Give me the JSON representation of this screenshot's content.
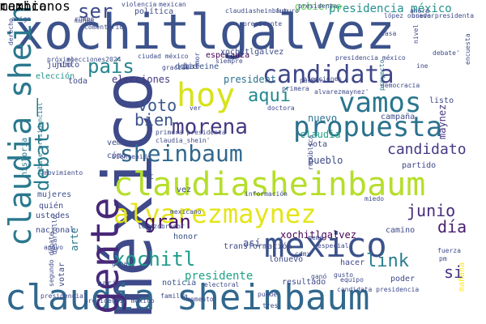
{
  "cloud": {
    "words": [
      {
        "text": "xochitlgalvez",
        "color": "#3b528b"
      },
      {
        "text": "méxico",
        "color": "#3e4a89"
      },
      {
        "text": "claudia sheinbaum",
        "color": "#31688e"
      },
      {
        "text": "claudiasheinbaum",
        "color": "#b5de2b"
      },
      {
        "text": "claudia_shein",
        "color": "#2a788e"
      },
      {
        "text": "mexico",
        "color": "#3b528b"
      },
      {
        "text": "propuesta",
        "color": "#2c728e"
      },
      {
        "text": "hoy",
        "color": "#d8e219"
      },
      {
        "text": "vamos",
        "color": "#2a768e"
      },
      {
        "text": "alvarezmaynez",
        "color": "#e5e419"
      },
      {
        "text": "candidata",
        "color": "#3f4788"
      },
      {
        "text": "gente",
        "color": "#482878"
      },
      {
        "text": "sheinbaum",
        "color": "#31688e"
      },
      {
        "text": "morena",
        "color": "#443983"
      },
      {
        "text": "país",
        "color": "#25858e"
      },
      {
        "text": "debate",
        "color": "#287d8e"
      },
      {
        "text": "xochitl",
        "color": "#1e9b8a"
      },
      {
        "text": "candidato",
        "color": "#443983"
      },
      {
        "text": "gran",
        "color": "#471365"
      },
      {
        "text": "aquí",
        "color": "#23898e"
      },
      {
        "text": "bien",
        "color": "#3b528b"
      },
      {
        "text": "voto",
        "color": "#39568c"
      },
      {
        "text": "junio",
        "color": "#472d7b"
      },
      {
        "text": "día",
        "color": "#481f70"
      },
      {
        "text": "link",
        "color": "#287d8e"
      },
      {
        "text": "si",
        "color": "#453781"
      },
      {
        "text": "ser",
        "color": "#3e4a89"
      },
      {
        "text": "arte",
        "color": "#2a788e"
      },
      {
        "text": "xochitlgalvez",
        "color": "#440154"
      },
      {
        "text": "presidente",
        "color": "#20a386"
      },
      {
        "text": "resultado",
        "color": "#3e4a89"
      },
      {
        "text": "noticia",
        "color": "#3b528b"
      },
      {
        "text": "presidencia méxico",
        "color": "#21918c"
      },
      {
        "text": "gobierno",
        "color": "#5ec962"
      },
      {
        "text": "elecciones",
        "color": "#453781"
      },
      {
        "text": "debateine",
        "color": "#3b528b"
      },
      {
        "text": "president",
        "color": "#2c728e"
      },
      {
        "text": "esperanza",
        "color": "#440154"
      },
      {
        "text": "partido",
        "color": "#3e4a89"
      },
      {
        "text": "mujeres",
        "color": "#3b528b"
      },
      {
        "text": "transformación",
        "color": "#3e4a89"
      },
      {
        "text": "pueblo",
        "color": "#3e4a89"
      },
      {
        "text": "hacia",
        "color": "#3e4a89"
      },
      {
        "text": "honor",
        "color": "#3b528b"
      },
      {
        "text": "así",
        "color": "#3e4a89"
      },
      {
        "text": "nuevo",
        "color": "#2c728e"
      },
      {
        "text": "poder",
        "color": "#3e4a89"
      },
      {
        "text": "campaña",
        "color": "#3e4a89"
      },
      {
        "text": "maynez",
        "color": "#453781"
      },
      {
        "text": "claudia",
        "color": "#20a386"
      },
      {
        "text": "vota",
        "color": "#3e4a89"
      },
      {
        "text": "presidencia méxico",
        "color": "#3e4a89"
      },
      {
        "text": "votar",
        "color": "#3e4a89"
      },
      {
        "text": "camino",
        "color": "#3e4a89"
      },
      {
        "text": "equipo",
        "color": "#3e4a89"
      },
      {
        "text": "hacer",
        "color": "#3e4a89"
      },
      {
        "text": "junto",
        "color": "#3e4a89"
      },
      {
        "text": "toda",
        "color": "#3e4a89"
      },
      {
        "text": "elección",
        "color": "#21918c"
      },
      {
        "text": "cómo",
        "color": "#3e4a89"
      },
      {
        "text": "vemos",
        "color": "#3e4a89"
      },
      {
        "text": "quién",
        "color": "#3e4a89"
      },
      {
        "text": "ustedes",
        "color": "#3e4a89"
      },
      {
        "text": "nacional",
        "color": "#3e4a89"
      },
      {
        "text": "debate presidencial",
        "color": "#2a788e"
      },
      {
        "text": "historia",
        "color": "#2a788e"
      },
      {
        "text": "xochitlgalvez",
        "color": "#3e4a89"
      },
      {
        "text": "claudia_shein'",
        "color": "#3e4a89"
      },
      {
        "text": "alvarezmaynez'",
        "color": "#3e4a89"
      },
      {
        "text": "primera presidenta",
        "color": "#3e4a89"
      },
      {
        "text": "presidenta",
        "color": "#3e4a89"
      },
      {
        "text": "ver",
        "color": "#3e4a89"
      },
      {
        "text": "gusto",
        "color": "#3e4a89"
      },
      {
        "text": "4t",
        "color": "#3e4a89"
      },
      {
        "text": "meme",
        "color": "#3e4a89"
      },
      {
        "text": "especial",
        "color": "#3e4a89"
      },
      {
        "text": "mañana",
        "color": "#fde725"
      },
      {
        "text": "vez",
        "color": "#3e4a89"
      },
      {
        "text": "lonuevo",
        "color": "#3e4a89"
      },
      {
        "text": "cdmx",
        "color": "#3e4a89"
      },
      {
        "text": "bio",
        "color": "#3e4a89"
      },
      {
        "text": "amor",
        "color": "#3e4a89"
      },
      {
        "text": "siempre",
        "color": "#3e4a89"
      },
      {
        "text": "junto",
        "color": "#3e4a89"
      },
      {
        "text": "listo",
        "color": "#3e4a89"
      },
      {
        "text": "proyecto",
        "color": "#2a788e"
      },
      {
        "text": "democracia",
        "color": "#3e4a89"
      },
      {
        "text": "debate'",
        "color": "#3e4a89"
      },
      {
        "text": "presidencia méxico",
        "color": "#3e4a89"
      },
      {
        "text": "presidente",
        "color": "#3e4a89"
      },
      {
        "text": "mundo",
        "color": "#3e4a89"
      },
      {
        "text": "amigo",
        "color": "#3e4a89"
      },
      {
        "text": "derecho",
        "color": "#3e4a89"
      },
      {
        "text": "próximo",
        "color": "#3e4a89"
      },
      {
        "text": "elecciones2024",
        "color": "#3e4a89"
      },
      {
        "text": "gracias",
        "color": "#3e4a89"
      },
      {
        "text": "ciudad méxico",
        "color": "#3e4a89"
      },
      {
        "text": "política",
        "color": "#3e4a89"
      },
      {
        "text": "futuro",
        "color": "#3e4a89"
      },
      {
        "text": "ahora",
        "color": "#3e4a89"
      },
      {
        "text": "nueva presidenta",
        "color": "#3e4a89"
      },
      {
        "text": "lópez obrador",
        "color": "#3e4a89"
      },
      {
        "text": "claudiasheinbaum",
        "color": "#3e4a89"
      },
      {
        "text": "mexican",
        "color": "#3e4a89"
      },
      {
        "text": "violencia",
        "color": "#3e4a89"
      },
      {
        "text": "rumbo",
        "color": "#3e4a89"
      },
      {
        "text": "comentario",
        "color": "#3e4a89"
      },
      {
        "text": "ine",
        "color": "#3e4a89"
      },
      {
        "text": "encuesta",
        "color": "#3e4a89"
      },
      {
        "text": "nivel",
        "color": "#3e4a89"
      },
      {
        "text": "casa",
        "color": "#3e4a89"
      },
      {
        "text": "elecciones",
        "color": "#3e4a89"
      },
      {
        "text": "doctora",
        "color": "#3e4a89"
      },
      {
        "text": "miedo",
        "color": "#3e4a89"
      },
      {
        "text": "información",
        "color": "#3e4a89"
      },
      {
        "text": "mexicano",
        "color": "#3e4a89"
      },
      {
        "text": "lopezobrador",
        "color": "#3e4a89"
      },
      {
        "text": "movimiento",
        "color": "#3e4a89"
      },
      {
        "text": "presidencial",
        "color": "#3e4a89"
      },
      {
        "text": "desarrollo",
        "color": "#3e4a89"
      },
      {
        "text": "apoyo",
        "color": "#3e4a89"
      },
      {
        "text": "república",
        "color": "#3e4a89"
      },
      {
        "text": "gana",
        "color": "#3e4a89"
      },
      {
        "text": "fuerza",
        "color": "#3e4a89"
      },
      {
        "text": "pm",
        "color": "#3e4a89"
      },
      {
        "text": "familia",
        "color": "#3e4a89"
      },
      {
        "text": "momento",
        "color": "#3e4a89"
      },
      {
        "text": "new",
        "color": "#3e4a89"
      },
      {
        "text": "electoral",
        "color": "#3e4a89"
      },
      {
        "text": "candidata presidencia",
        "color": "#3e4a89"
      },
      {
        "text": "ganó",
        "color": "#3e4a89"
      },
      {
        "text": "puede",
        "color": "#3e4a89"
      },
      {
        "text": "tres",
        "color": "#3e4a89"
      },
      {
        "text": "bienvenida",
        "color": "#3e4a89"
      },
      {
        "text": "segundo debate",
        "color": "#3e4a89"
      },
      {
        "text": "primera",
        "color": "#3e4a89"
      },
      {
        "text": "pueden",
        "color": "#3e4a89"
      },
      {
        "text": "cambio",
        "color": "#3e4a89"
      },
      {
        "text": "mexicanos",
        "color": "#3e4a89"
      }
    ]
  }
}
